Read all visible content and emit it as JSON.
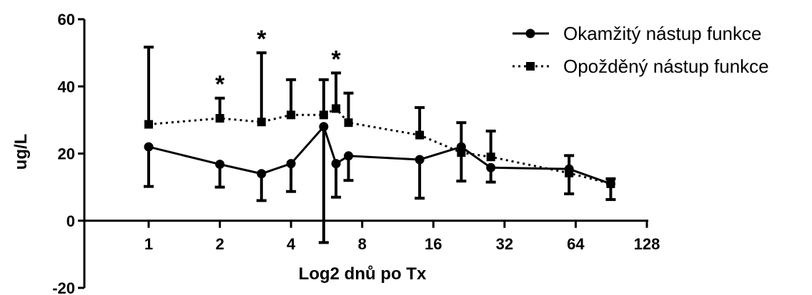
{
  "chart_data": {
    "type": "line",
    "title": "",
    "xlabel": "Log2 dnů po Tx",
    "ylabel": "ug/L",
    "x_scale": "log2",
    "xlim": [
      0.5,
      128
    ],
    "ylim": [
      -20,
      60
    ],
    "x_ticks": [
      1,
      2,
      4,
      8,
      16,
      32,
      64,
      128
    ],
    "y_ticks": [
      -20,
      0,
      20,
      40,
      60
    ],
    "grid": false,
    "legend_position": "top-right",
    "series": [
      {
        "name": "Okamžitý nástup funkce",
        "marker": "circle",
        "line_style": "solid",
        "color": "#000000",
        "x": [
          1,
          2,
          3,
          4,
          5.5,
          6.2,
          7,
          14,
          21,
          28,
          60,
          90
        ],
        "y": [
          22,
          16.8,
          14,
          17,
          28,
          17,
          19.3,
          18.2,
          22,
          15.8,
          15.4,
          11
        ],
        "lower": [
          10.2,
          10,
          6,
          8.7,
          -6.5,
          7,
          12,
          6.7,
          11.8,
          11.5,
          8,
          6.3
        ],
        "upper": [
          null,
          null,
          null,
          null,
          null,
          null,
          null,
          null,
          null,
          null,
          null,
          null
        ]
      },
      {
        "name": "Opožděný nástup funkce",
        "marker": "square",
        "line_style": "dotted",
        "color": "#000000",
        "x": [
          1,
          2,
          3,
          4,
          5.5,
          6.2,
          7,
          14,
          21,
          28,
          60,
          90
        ],
        "y": [
          28.7,
          30.5,
          29.4,
          31.5,
          31.5,
          33.4,
          29.2,
          25.5,
          20.3,
          19,
          14.2,
          11
        ],
        "lower": [
          null,
          null,
          null,
          null,
          null,
          null,
          null,
          null,
          null,
          null,
          null,
          null
        ],
        "upper": [
          51.7,
          36.5,
          50,
          42,
          42,
          44,
          38,
          33.7,
          29.2,
          26.7,
          19.4,
          12.5
        ]
      }
    ],
    "annotations": [
      {
        "text": "*",
        "x": 2,
        "y": 36.5
      },
      {
        "text": "*",
        "x": 3,
        "y": 50
      },
      {
        "text": "*",
        "x": 6.2,
        "y": 44
      }
    ]
  }
}
